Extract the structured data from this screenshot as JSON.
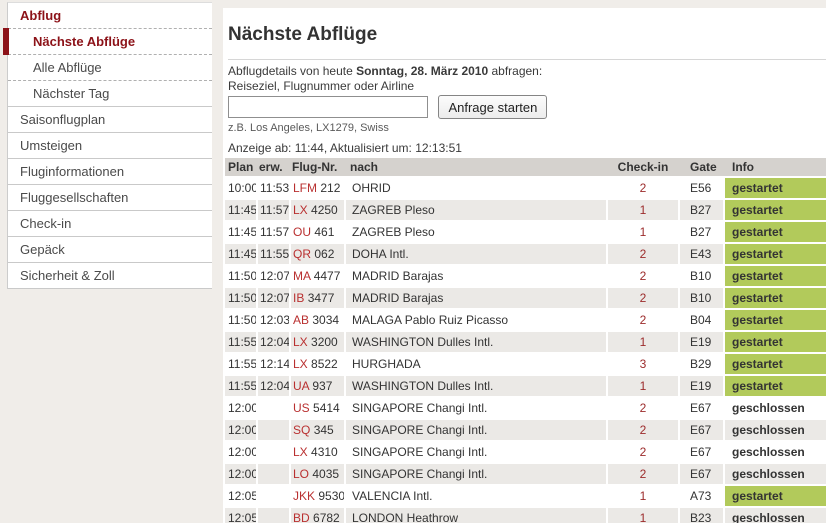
{
  "colors": {
    "page_bg": "#f0ede9",
    "accent_red": "#8c1218",
    "code_red": "#b93030",
    "checkin_red": "#9c2b2b",
    "started_bg": "#b2ca5b",
    "header_bg": "#d5d2ce",
    "row_alt_bg": "#ebe9e6"
  },
  "sidebar": {
    "items": [
      {
        "label": "Abflug",
        "style": "section",
        "sub": false,
        "active": false,
        "sep": "dashed"
      },
      {
        "label": "Nächste Abflüge",
        "style": "section",
        "sub": true,
        "active": true,
        "sep": "dashed"
      },
      {
        "label": "Alle Abflüge",
        "style": "normal",
        "sub": true,
        "active": false,
        "sep": "dashed"
      },
      {
        "label": "Nächster Tag",
        "style": "normal",
        "sub": true,
        "active": false,
        "sep": "solid"
      },
      {
        "label": "Saisonflugplan",
        "style": "normal",
        "sub": false,
        "active": false,
        "sep": "solid"
      },
      {
        "label": "Umsteigen",
        "style": "normal",
        "sub": false,
        "active": false,
        "sep": "solid"
      },
      {
        "label": "Fluginformationen",
        "style": "normal",
        "sub": false,
        "active": false,
        "sep": "solid"
      },
      {
        "label": "Fluggesellschaften",
        "style": "normal",
        "sub": false,
        "active": false,
        "sep": "solid"
      },
      {
        "label": "Check-in",
        "style": "normal",
        "sub": false,
        "active": false,
        "sep": "solid"
      },
      {
        "label": "Gepäck",
        "style": "normal",
        "sub": false,
        "active": false,
        "sep": "solid"
      },
      {
        "label": "Sicherheit & Zoll",
        "style": "normal",
        "sub": false,
        "active": false,
        "sep": "solid"
      }
    ]
  },
  "main": {
    "title": "Nächste Abflüge",
    "query": {
      "prefix": "Abflugdetails von heute ",
      "date": "Sonntag, 28. März 2010",
      "suffix": " abfragen:",
      "label": "Reiseziel, Flugnummer oder Airline",
      "input_value": "",
      "button": "Anfrage starten",
      "hint": "z.B. Los Angeles, LX1279, Swiss"
    },
    "status": "Anzeige ab: 11:44, Aktualisiert um: 12:13:51"
  },
  "table": {
    "headers": {
      "plan": "Plan",
      "erw": "erw.",
      "flug": "Flug-Nr.",
      "nach": "nach",
      "checkin": "Check-in",
      "gate": "Gate",
      "info": "Info"
    },
    "rows": [
      {
        "plan": "10:00",
        "erw": "11:53",
        "code": "LFM",
        "num": "212",
        "nach": "OHRID",
        "checkin": "2",
        "gate": "E56",
        "info": "gestartet"
      },
      {
        "plan": "11:45",
        "erw": "11:57",
        "code": "LX",
        "num": "4250",
        "nach": "ZAGREB Pleso",
        "checkin": "1",
        "gate": "B27",
        "info": "gestartet"
      },
      {
        "plan": "11:45",
        "erw": "11:57",
        "code": "OU",
        "num": "461",
        "nach": "ZAGREB Pleso",
        "checkin": "1",
        "gate": "B27",
        "info": "gestartet"
      },
      {
        "plan": "11:45",
        "erw": "11:55",
        "code": "QR",
        "num": "062",
        "nach": "DOHA Intl.",
        "checkin": "2",
        "gate": "E43",
        "info": "gestartet"
      },
      {
        "plan": "11:50",
        "erw": "12:07",
        "code": "MA",
        "num": "4477",
        "nach": "MADRID Barajas",
        "checkin": "2",
        "gate": "B10",
        "info": "gestartet"
      },
      {
        "plan": "11:50",
        "erw": "12:07",
        "code": "IB",
        "num": "3477",
        "nach": "MADRID Barajas",
        "checkin": "2",
        "gate": "B10",
        "info": "gestartet"
      },
      {
        "plan": "11:50",
        "erw": "12:03",
        "code": "AB",
        "num": "3034",
        "nach": "MALAGA Pablo Ruiz Picasso",
        "checkin": "2",
        "gate": "B04",
        "info": "gestartet"
      },
      {
        "plan": "11:55",
        "erw": "12:04",
        "code": "LX",
        "num": "3200",
        "nach": "WASHINGTON Dulles Intl.",
        "checkin": "1",
        "gate": "E19",
        "info": "gestartet"
      },
      {
        "plan": "11:55",
        "erw": "12:14",
        "code": "LX",
        "num": "8522",
        "nach": "HURGHADA",
        "checkin": "3",
        "gate": "B29",
        "info": "gestartet"
      },
      {
        "plan": "11:55",
        "erw": "12:04",
        "code": "UA",
        "num": "937",
        "nach": "WASHINGTON Dulles Intl.",
        "checkin": "1",
        "gate": "E19",
        "info": "gestartet"
      },
      {
        "plan": "12:00",
        "erw": "",
        "code": "US",
        "num": "5414",
        "nach": "SINGAPORE Changi Intl.",
        "checkin": "2",
        "gate": "E67",
        "info": "geschlossen"
      },
      {
        "plan": "12:00",
        "erw": "",
        "code": "SQ",
        "num": "345",
        "nach": "SINGAPORE Changi Intl.",
        "checkin": "2",
        "gate": "E67",
        "info": "geschlossen"
      },
      {
        "plan": "12:00",
        "erw": "",
        "code": "LX",
        "num": "4310",
        "nach": "SINGAPORE Changi Intl.",
        "checkin": "2",
        "gate": "E67",
        "info": "geschlossen"
      },
      {
        "plan": "12:00",
        "erw": "",
        "code": "LO",
        "num": "4035",
        "nach": "SINGAPORE Changi Intl.",
        "checkin": "2",
        "gate": "E67",
        "info": "geschlossen"
      },
      {
        "plan": "12:05",
        "erw": "",
        "code": "JKK",
        "num": "9530",
        "nach": "VALENCIA Intl.",
        "checkin": "1",
        "gate": "A73",
        "info": "gestartet"
      },
      {
        "plan": "12:05",
        "erw": "",
        "code": "BD",
        "num": "6782",
        "nach": "LONDON Heathrow",
        "checkin": "1",
        "gate": "B23",
        "info": "geschlossen"
      }
    ]
  }
}
